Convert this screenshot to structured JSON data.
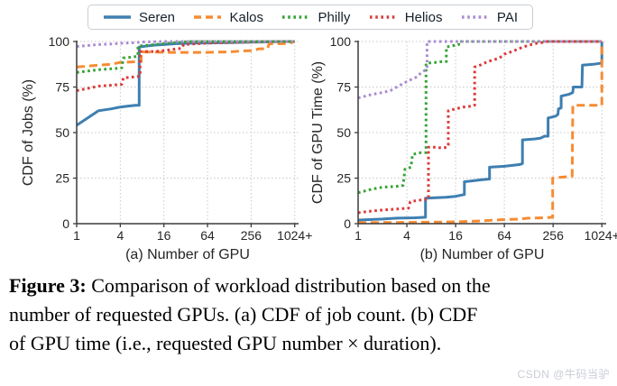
{
  "legend": {
    "items": [
      {
        "label": "Seren",
        "color": "#3e7fb1",
        "style": "solid"
      },
      {
        "label": "Kalos",
        "color": "#f78b31",
        "style": "dashed"
      },
      {
        "label": "Philly",
        "color": "#35a335",
        "style": "dotted"
      },
      {
        "label": "Helios",
        "color": "#dd3a3a",
        "style": "dotted"
      },
      {
        "label": "PAI",
        "color": "#a98bd3",
        "style": "dotted"
      }
    ]
  },
  "caption": {
    "label": "Figure 3:",
    "line1_rest": " Comparison of workload distribution based on the",
    "line2": "number of requested GPUs. (a) CDF of job count. (b) CDF",
    "line3": "of GPU time (i.e., requested GPU number × duration)."
  },
  "watermark": "CSDN @牛码当驴",
  "chart_data": [
    {
      "type": "line",
      "id": "jobs-cdf",
      "xlabel": "(a) Number of GPU",
      "ylabel": "CDF of Jobs (%)",
      "xscale": "log2",
      "xlim": [
        1,
        1024
      ],
      "ylim": [
        0,
        100
      ],
      "grid": true,
      "legend_position": "top-outside",
      "xtick_values": [
        1,
        4,
        16,
        64,
        256,
        1024
      ],
      "xtick_labels": [
        "1",
        "4",
        "16",
        "64",
        "256",
        "1024+"
      ],
      "ytick_values": [
        0,
        25,
        50,
        75,
        100
      ],
      "series": [
        {
          "name": "Seren",
          "color": "#3e7fb1",
          "dash": "solid",
          "points": [
            [
              1,
              54
            ],
            [
              2,
              62
            ],
            [
              3,
              63
            ],
            [
              4,
              64
            ],
            [
              5,
              64.5
            ],
            [
              6.5,
              65
            ],
            [
              7.3,
              65
            ],
            [
              7.3,
              97
            ],
            [
              9,
              97.5
            ],
            [
              12,
              98
            ],
            [
              16,
              98.3
            ],
            [
              24,
              98.8
            ],
            [
              48,
              99.1
            ],
            [
              128,
              99.4
            ],
            [
              256,
              99.6
            ],
            [
              512,
              99.8
            ],
            [
              1024,
              100
            ]
          ]
        },
        {
          "name": "Kalos",
          "color": "#f78b31",
          "dash": "dashed",
          "points": [
            [
              1,
              86
            ],
            [
              2,
              87
            ],
            [
              3,
              87.5
            ],
            [
              4,
              88.5
            ],
            [
              6,
              88.8
            ],
            [
              7.8,
              89
            ],
            [
              7.8,
              94.3
            ],
            [
              20,
              94
            ],
            [
              60,
              94
            ],
            [
              128,
              94.3
            ],
            [
              200,
              94.8
            ],
            [
              256,
              95
            ],
            [
              300,
              95.5
            ],
            [
              330,
              96
            ],
            [
              430,
              96
            ],
            [
              455,
              98.7
            ],
            [
              700,
              98.8
            ],
            [
              900,
              99.2
            ],
            [
              1024,
              100
            ]
          ]
        },
        {
          "name": "Philly",
          "color": "#35a335",
          "dash": "dotted",
          "points": [
            [
              1,
              83
            ],
            [
              2,
              84.5
            ],
            [
              3,
              85
            ],
            [
              4.2,
              85.5
            ],
            [
              4.4,
              91
            ],
            [
              6,
              91.5
            ],
            [
              7,
              92
            ],
            [
              7,
              97.5
            ],
            [
              10,
              98
            ],
            [
              16,
              98.8
            ],
            [
              24,
              99.4
            ],
            [
              32,
              99.8
            ],
            [
              40,
              100
            ],
            [
              1024,
              100
            ]
          ]
        },
        {
          "name": "Helios",
          "color": "#dd3a3a",
          "dash": "dotted",
          "points": [
            [
              1,
              73
            ],
            [
              2,
              75.5
            ],
            [
              3,
              76
            ],
            [
              4.2,
              76.5
            ],
            [
              4.4,
              80
            ],
            [
              6,
              80.5
            ],
            [
              7.5,
              81
            ],
            [
              7.5,
              94.5
            ],
            [
              12,
              94.5
            ],
            [
              16,
              95
            ],
            [
              20,
              95.5
            ],
            [
              24,
              96
            ],
            [
              28,
              96.2
            ],
            [
              30,
              98.3
            ],
            [
              48,
              98.8
            ],
            [
              64,
              99.1
            ],
            [
              128,
              99.4
            ],
            [
              256,
              99.7
            ],
            [
              512,
              100
            ],
            [
              1024,
              100
            ]
          ]
        },
        {
          "name": "PAI",
          "color": "#a98bd3",
          "dash": "dotted",
          "points": [
            [
              1,
              97.3
            ],
            [
              2,
              98.3
            ],
            [
              3,
              98.6
            ],
            [
              4,
              99
            ],
            [
              6,
              99.3
            ],
            [
              8,
              99.7
            ],
            [
              16,
              100
            ],
            [
              1024,
              100
            ]
          ]
        }
      ]
    },
    {
      "type": "line",
      "id": "gpu-time-cdf",
      "xlabel": "(b) Number of GPU",
      "ylabel": "CDF of GPU Time (%)",
      "xscale": "log2",
      "xlim": [
        1,
        1024
      ],
      "ylim": [
        0,
        100
      ],
      "grid": true,
      "legend_position": "top-outside",
      "xtick_values": [
        1,
        4,
        16,
        64,
        256,
        1024
      ],
      "xtick_labels": [
        "1",
        "4",
        "16",
        "64",
        "256",
        "1024+"
      ],
      "ytick_values": [
        0,
        25,
        50,
        75,
        100
      ],
      "series": [
        {
          "name": "Seren",
          "color": "#3e7fb1",
          "dash": "solid",
          "points": [
            [
              1,
              2
            ],
            [
              2,
              2.5
            ],
            [
              3,
              3
            ],
            [
              5,
              3.2
            ],
            [
              6.8,
              3.5
            ],
            [
              6.8,
              14
            ],
            [
              12,
              14.5
            ],
            [
              16,
              15
            ],
            [
              18,
              15.5
            ],
            [
              20.5,
              16
            ],
            [
              20.5,
              23
            ],
            [
              26,
              23.5
            ],
            [
              32,
              24
            ],
            [
              42,
              24.5
            ],
            [
              42,
              31
            ],
            [
              64,
              31.5
            ],
            [
              80,
              32
            ],
            [
              100,
              32.5
            ],
            [
              107,
              33
            ],
            [
              107,
              46
            ],
            [
              150,
              46.5
            ],
            [
              180,
              47
            ],
            [
              200,
              48
            ],
            [
              222,
              48
            ],
            [
              222,
              58
            ],
            [
              275,
              59
            ],
            [
              293,
              60
            ],
            [
              298,
              63
            ],
            [
              322,
              63.5
            ],
            [
              322,
              70
            ],
            [
              400,
              71
            ],
            [
              447,
              72
            ],
            [
              455,
              75
            ],
            [
              580,
              75
            ],
            [
              590,
              87
            ],
            [
              800,
              87.5
            ],
            [
              980,
              88
            ],
            [
              1024,
              88.5
            ],
            [
              1024,
              100
            ]
          ]
        },
        {
          "name": "Kalos",
          "color": "#f78b31",
          "dash": "dashed",
          "points": [
            [
              1,
              0.5
            ],
            [
              8,
              0.8
            ],
            [
              16,
              1
            ],
            [
              32,
              1.5
            ],
            [
              48,
              2
            ],
            [
              96,
              2.5
            ],
            [
              128,
              3
            ],
            [
              200,
              3.2
            ],
            [
              253,
              3.5
            ],
            [
              253,
              25
            ],
            [
              320,
              25.5
            ],
            [
              440,
              26
            ],
            [
              448,
              65
            ],
            [
              700,
              65
            ],
            [
              1024,
              65
            ],
            [
              1024,
              100
            ]
          ]
        },
        {
          "name": "Philly",
          "color": "#35a335",
          "dash": "dotted",
          "points": [
            [
              1,
              17
            ],
            [
              1.5,
              19
            ],
            [
              2,
              20
            ],
            [
              3,
              20.5
            ],
            [
              3.6,
              21
            ],
            [
              3.8,
              30
            ],
            [
              4.5,
              31
            ],
            [
              4.7,
              38
            ],
            [
              6,
              39
            ],
            [
              6.9,
              39
            ],
            [
              6.9,
              88
            ],
            [
              9,
              88.5
            ],
            [
              11,
              89
            ],
            [
              12.3,
              89
            ],
            [
              12.3,
              97
            ],
            [
              14,
              97.5
            ],
            [
              16,
              98
            ],
            [
              17.5,
              98.3
            ],
            [
              17.5,
              100
            ],
            [
              1024,
              100
            ]
          ]
        },
        {
          "name": "Helios",
          "color": "#dd3a3a",
          "dash": "dotted",
          "points": [
            [
              1,
              6
            ],
            [
              1.5,
              7
            ],
            [
              2,
              7.5
            ],
            [
              3,
              8
            ],
            [
              4.2,
              8.5
            ],
            [
              4.4,
              12
            ],
            [
              5,
              12.5
            ],
            [
              6,
              13
            ],
            [
              7.4,
              13.5
            ],
            [
              7.4,
              42
            ],
            [
              9,
              42
            ],
            [
              11,
              41.5
            ],
            [
              12.6,
              42
            ],
            [
              13,
              43
            ],
            [
              13,
              62
            ],
            [
              16,
              63
            ],
            [
              20,
              64
            ],
            [
              25,
              64.5
            ],
            [
              27.5,
              65
            ],
            [
              27.5,
              86
            ],
            [
              32,
              87
            ],
            [
              40,
              89
            ],
            [
              48,
              90
            ],
            [
              56,
              91
            ],
            [
              64,
              93
            ],
            [
              80,
              94.5
            ],
            [
              96,
              96
            ],
            [
              128,
              98
            ],
            [
              160,
              99
            ],
            [
              192,
              99.5
            ],
            [
              215,
              100
            ],
            [
              1024,
              100
            ]
          ]
        },
        {
          "name": "PAI",
          "color": "#a98bd3",
          "dash": "dotted",
          "points": [
            [
              1,
              69
            ],
            [
              1.5,
              71
            ],
            [
              2,
              72
            ],
            [
              2.5,
              73
            ],
            [
              3,
              75
            ],
            [
              4,
              78
            ],
            [
              5,
              80
            ],
            [
              5.5,
              81
            ],
            [
              6,
              83
            ],
            [
              6.6,
              84
            ],
            [
              7.1,
              85
            ],
            [
              7.1,
              100
            ],
            [
              1024,
              100
            ]
          ]
        }
      ]
    }
  ]
}
